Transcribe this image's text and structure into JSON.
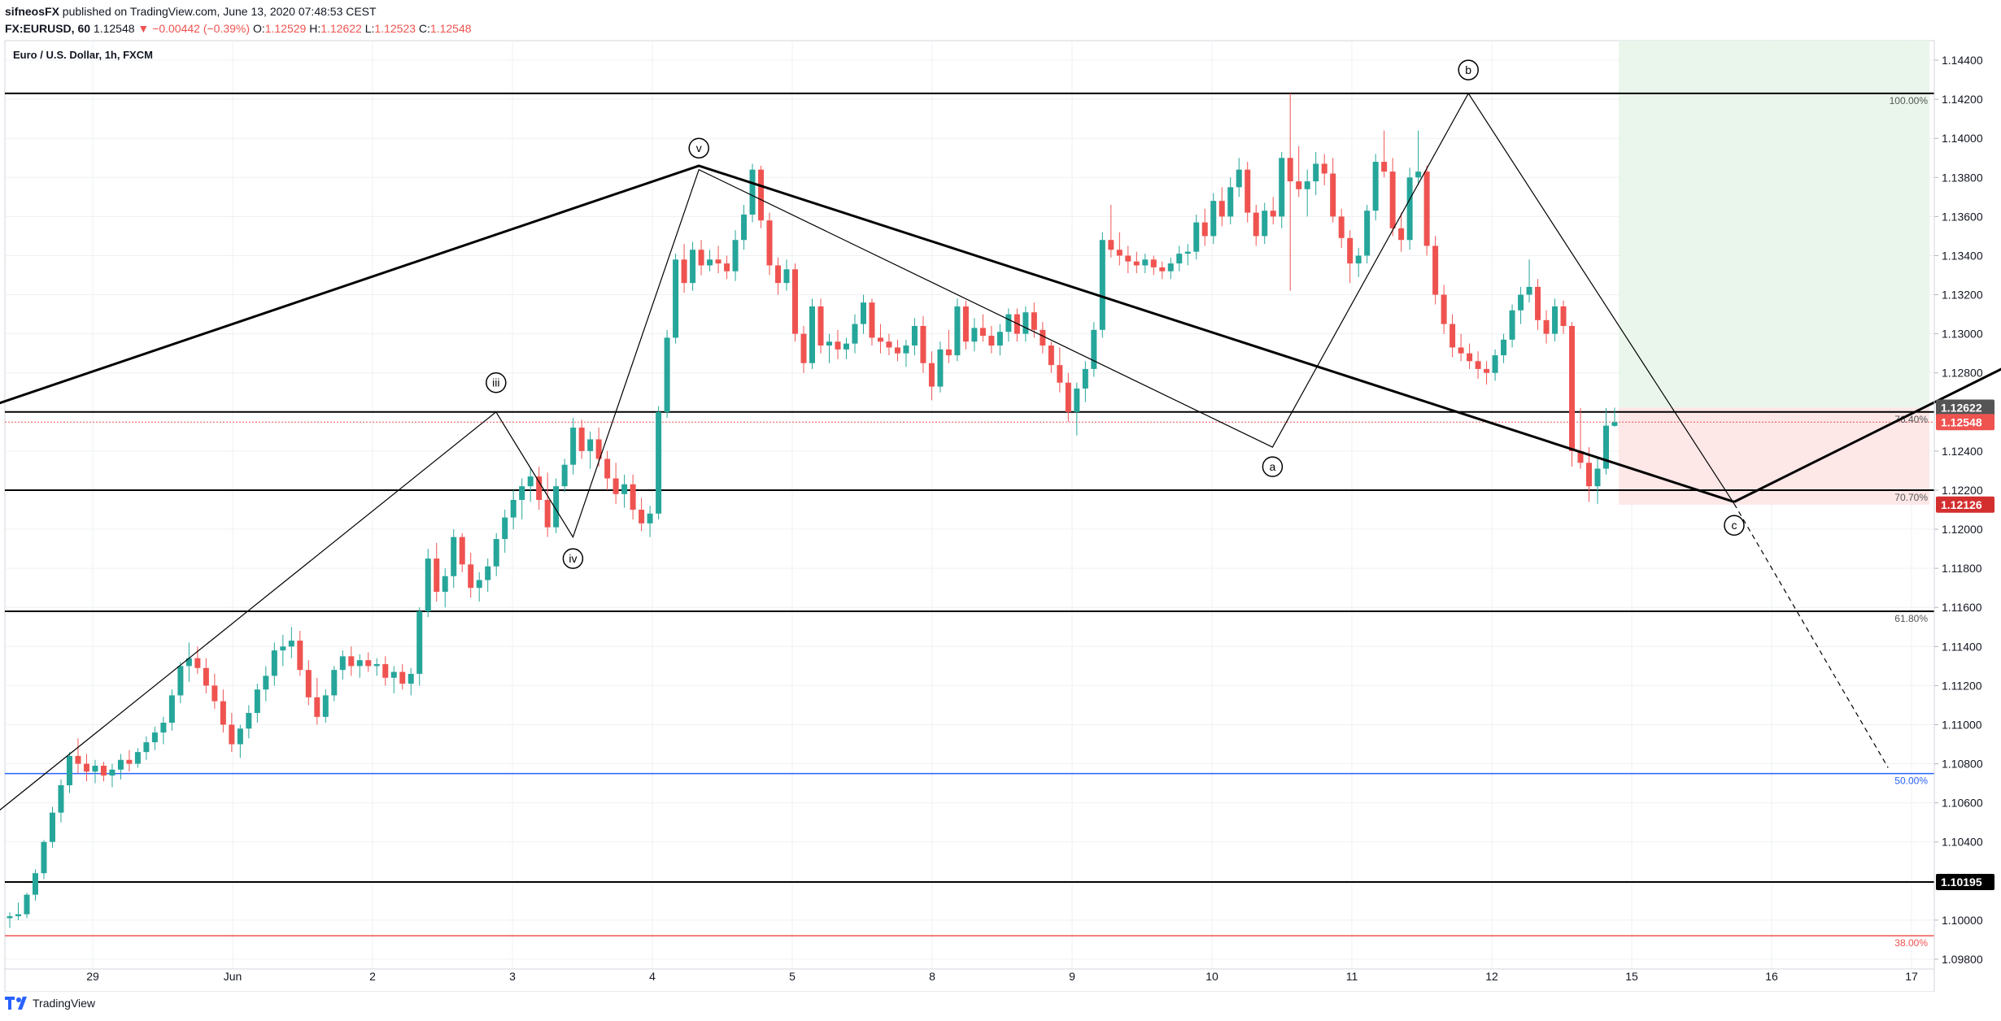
{
  "header": {
    "publisher": "sifneosFX",
    "published_text": "published on TradingView.com, June 13, 2020 07:48:53 CEST",
    "symbol": "FX:EURUSD, 60",
    "last": "1.12548",
    "change": "▼ −0.00442 (−0.39%)",
    "o_label": "O:",
    "o_val": "1.12529",
    "h_label": "H:",
    "h_val": "1.12622",
    "l_label": "L:",
    "l_val": "1.12523",
    "c_label": "C:",
    "c_val": "1.12548"
  },
  "chart_title": "Euro / U.S. Dollar, 1h, FXCM",
  "footer": {
    "brand": "TradingView"
  },
  "colors": {
    "up": "#26a69a",
    "down": "#ef5350",
    "grid": "#eef0f3",
    "fib50": "#2962ff",
    "fib38": "#ef5350",
    "target_zone": "#e8f5e9",
    "stop_zone": "#fde4e4"
  },
  "chart_data": {
    "type": "candlestick",
    "title": "Euro / U.S. Dollar, 1h, FXCM",
    "ylim": [
      1.0975,
      1.145
    ],
    "y_ticks": [
      "1.14400",
      "1.14200",
      "1.14000",
      "1.13800",
      "1.13600",
      "1.13400",
      "1.13200",
      "1.13000",
      "1.12800",
      "1.12400",
      "1.12200",
      "1.12000",
      "1.11800",
      "1.11600",
      "1.11400",
      "1.11200",
      "1.11000",
      "1.10800",
      "1.10600",
      "1.10400",
      "1.10000",
      "1.09800"
    ],
    "x_ticks": [
      "29",
      "Jun",
      "2",
      "3",
      "4",
      "5",
      "8",
      "9",
      "10",
      "11",
      "12",
      "15",
      "16",
      "17"
    ],
    "price_badges": [
      {
        "label": "1.12622",
        "value": 1.12622,
        "color": "#555555"
      },
      {
        "label": "1.12548",
        "value": 1.12548,
        "color": "#ef5350"
      },
      {
        "label": "1.12126",
        "value": 1.12126,
        "color": "#d32f2f"
      },
      {
        "label": "1.10195",
        "value": 1.10195,
        "color": "#000000"
      }
    ],
    "fib_levels": [
      {
        "label": "100.00%",
        "value": 1.1423,
        "color": "#000000"
      },
      {
        "label": "76.40%",
        "value": 1.126,
        "color": "#000000"
      },
      {
        "label": "70.70%",
        "value": 1.122,
        "color": "#000000"
      },
      {
        "label": "61.80%",
        "value": 1.1158,
        "color": "#000000"
      },
      {
        "label": "50.00%",
        "value": 1.1075,
        "color": "#2962ff"
      },
      {
        "label": "38.00%",
        "value": 1.0992,
        "color": "#ef5350"
      }
    ],
    "horizontal_line": {
      "value": 1.10195
    },
    "wave_labels": [
      {
        "text": "iii",
        "x": 3.9,
        "y": 1.1275
      },
      {
        "text": "iv",
        "x": 4.45,
        "y": 1.1185
      },
      {
        "text": "v",
        "x": 5.35,
        "y": 1.1395
      },
      {
        "text": "a",
        "x": 9.45,
        "y": 1.1232
      },
      {
        "text": "b",
        "x": 10.85,
        "y": 1.1435
      },
      {
        "text": "c",
        "x": 12.75,
        "y": 1.1202
      }
    ],
    "wave_path": [
      [
        0,
        1.1036
      ],
      [
        3.9,
        1.126
      ],
      [
        4.45,
        1.1196
      ],
      [
        5.35,
        1.1384
      ],
      [
        9.45,
        1.1242
      ],
      [
        10.85,
        1.1423
      ],
      [
        12.75,
        1.1213
      ]
    ],
    "triangle_upper": [
      [
        0,
        1.1256
      ],
      [
        5.35,
        1.1386
      ],
      [
        12.75,
        1.1214
      ]
    ],
    "triangle_lower": [
      [
        12.75,
        1.1214
      ],
      [
        14.8,
        1.1287
      ]
    ],
    "projection": [
      [
        12.75,
        1.1213
      ],
      [
        13.85,
        1.1078
      ]
    ],
    "candles": [
      [
        1.1001,
        1.1004,
        1.0996,
        1.1002
      ],
      [
        1.1002,
        1.1009,
        1.1,
        1.1003
      ],
      [
        1.1003,
        1.1014,
        1.1001,
        1.1013
      ],
      [
        1.1013,
        1.1026,
        1.101,
        1.1024
      ],
      [
        1.1024,
        1.1041,
        1.1021,
        1.104
      ],
      [
        1.104,
        1.1058,
        1.1037,
        1.1055
      ],
      [
        1.1055,
        1.1072,
        1.105,
        1.1069
      ],
      [
        1.1069,
        1.1086,
        1.1065,
        1.1084
      ],
      [
        1.1084,
        1.1093,
        1.1075,
        1.108
      ],
      [
        1.108,
        1.1085,
        1.1071,
        1.1076
      ],
      [
        1.1076,
        1.1082,
        1.107,
        1.1079
      ],
      [
        1.1079,
        1.1081,
        1.1071,
        1.1074
      ],
      [
        1.1074,
        1.108,
        1.1068,
        1.1077
      ],
      [
        1.1077,
        1.1085,
        1.1072,
        1.1082
      ],
      [
        1.1082,
        1.1087,
        1.1076,
        1.108
      ],
      [
        1.108,
        1.1088,
        1.1078,
        1.1086
      ],
      [
        1.1086,
        1.1094,
        1.1082,
        1.1091
      ],
      [
        1.1091,
        1.1099,
        1.1087,
        1.1096
      ],
      [
        1.1096,
        1.1104,
        1.109,
        1.1101
      ],
      [
        1.1101,
        1.1118,
        1.1097,
        1.1115
      ],
      [
        1.1115,
        1.1132,
        1.1111,
        1.113
      ],
      [
        1.113,
        1.1142,
        1.1122,
        1.1134
      ],
      [
        1.1134,
        1.114,
        1.1126,
        1.1129
      ],
      [
        1.1129,
        1.1134,
        1.1116,
        1.112
      ],
      [
        1.112,
        1.1126,
        1.1108,
        1.1112
      ],
      [
        1.1112,
        1.1118,
        1.1096,
        1.11
      ],
      [
        1.11,
        1.1106,
        1.1086,
        1.109
      ],
      [
        1.109,
        1.11,
        1.1083,
        1.1098
      ],
      [
        1.1098,
        1.111,
        1.1093,
        1.1106
      ],
      [
        1.1106,
        1.1121,
        1.1101,
        1.1118
      ],
      [
        1.1118,
        1.113,
        1.1112,
        1.1125
      ],
      [
        1.1125,
        1.1142,
        1.112,
        1.1138
      ],
      [
        1.1138,
        1.1146,
        1.113,
        1.114
      ],
      [
        1.114,
        1.115,
        1.1134,
        1.1143
      ],
      [
        1.1143,
        1.1148,
        1.1125,
        1.1128
      ],
      [
        1.1128,
        1.1133,
        1.111,
        1.1114
      ],
      [
        1.1114,
        1.1124,
        1.11,
        1.1104
      ],
      [
        1.1104,
        1.1118,
        1.1101,
        1.1115
      ],
      [
        1.1115,
        1.113,
        1.1112,
        1.1128
      ],
      [
        1.1128,
        1.1138,
        1.1123,
        1.1135
      ],
      [
        1.1135,
        1.114,
        1.1125,
        1.113
      ],
      [
        1.113,
        1.1136,
        1.1124,
        1.1133
      ],
      [
        1.1133,
        1.1137,
        1.1127,
        1.113
      ],
      [
        1.113,
        1.1134,
        1.1125,
        1.1131
      ],
      [
        1.1131,
        1.1135,
        1.112,
        1.1124
      ],
      [
        1.1124,
        1.113,
        1.1116,
        1.1127
      ],
      [
        1.1127,
        1.1131,
        1.1118,
        1.1121
      ],
      [
        1.1121,
        1.1129,
        1.1115,
        1.1126
      ],
      [
        1.1126,
        1.116,
        1.112,
        1.1158
      ],
      [
        1.1158,
        1.119,
        1.1155,
        1.1185
      ],
      [
        1.1185,
        1.1193,
        1.1163,
        1.1168
      ],
      [
        1.1168,
        1.118,
        1.116,
        1.1176
      ],
      [
        1.1176,
        1.12,
        1.117,
        1.1196
      ],
      [
        1.1196,
        1.1198,
        1.1178,
        1.1182
      ],
      [
        1.1182,
        1.1188,
        1.1165,
        1.117
      ],
      [
        1.117,
        1.1178,
        1.1163,
        1.1174
      ],
      [
        1.1174,
        1.1185,
        1.1168,
        1.1181
      ],
      [
        1.1181,
        1.1198,
        1.1176,
        1.1195
      ],
      [
        1.1195,
        1.121,
        1.1188,
        1.1206
      ],
      [
        1.1206,
        1.122,
        1.12,
        1.1215
      ],
      [
        1.1215,
        1.1226,
        1.1205,
        1.1222
      ],
      [
        1.1222,
        1.1231,
        1.1214,
        1.1227
      ],
      [
        1.1227,
        1.1232,
        1.121,
        1.1215
      ],
      [
        1.1215,
        1.1229,
        1.1196,
        1.1201
      ],
      [
        1.1201,
        1.1226,
        1.1198,
        1.1222
      ],
      [
        1.1222,
        1.1236,
        1.1219,
        1.1233
      ],
      [
        1.1233,
        1.1257,
        1.1228,
        1.1252
      ],
      [
        1.1252,
        1.1256,
        1.1236,
        1.124
      ],
      [
        1.124,
        1.125,
        1.1231,
        1.1246
      ],
      [
        1.1246,
        1.1252,
        1.1232,
        1.1236
      ],
      [
        1.1236,
        1.124,
        1.122,
        1.1226
      ],
      [
        1.1226,
        1.1234,
        1.1213,
        1.1218
      ],
      [
        1.1218,
        1.1228,
        1.1211,
        1.1223
      ],
      [
        1.1223,
        1.1228,
        1.1205,
        1.121
      ],
      [
        1.121,
        1.1216,
        1.1199,
        1.1203
      ],
      [
        1.1203,
        1.1212,
        1.1196,
        1.1208
      ],
      [
        1.1208,
        1.1263,
        1.1205,
        1.126
      ],
      [
        1.126,
        1.1302,
        1.1257,
        1.1298
      ],
      [
        1.1298,
        1.1341,
        1.1295,
        1.1338
      ],
      [
        1.1338,
        1.1346,
        1.1321,
        1.1326
      ],
      [
        1.1326,
        1.1347,
        1.1322,
        1.1343
      ],
      [
        1.1343,
        1.1348,
        1.133,
        1.1335
      ],
      [
        1.1335,
        1.1343,
        1.1332,
        1.1338
      ],
      [
        1.1338,
        1.1345,
        1.1331,
        1.1336
      ],
      [
        1.1336,
        1.134,
        1.1328,
        1.1332
      ],
      [
        1.1332,
        1.1353,
        1.1327,
        1.1348
      ],
      [
        1.1348,
        1.1366,
        1.1343,
        1.1361
      ],
      [
        1.1361,
        1.1387,
        1.1357,
        1.1384
      ],
      [
        1.1384,
        1.1386,
        1.1354,
        1.1358
      ],
      [
        1.1358,
        1.1362,
        1.133,
        1.1335
      ],
      [
        1.1335,
        1.1339,
        1.132,
        1.1326
      ],
      [
        1.1326,
        1.1338,
        1.1322,
        1.1333
      ],
      [
        1.1333,
        1.1336,
        1.1296,
        1.13
      ],
      [
        1.13,
        1.1304,
        1.128,
        1.1285
      ],
      [
        1.1285,
        1.1318,
        1.1282,
        1.1314
      ],
      [
        1.1314,
        1.1318,
        1.129,
        1.1294
      ],
      [
        1.1294,
        1.13,
        1.1285,
        1.1296
      ],
      [
        1.1296,
        1.1302,
        1.1287,
        1.1292
      ],
      [
        1.1292,
        1.1298,
        1.1287,
        1.1295
      ],
      [
        1.1295,
        1.131,
        1.129,
        1.1305
      ],
      [
        1.1305,
        1.132,
        1.13,
        1.1316
      ],
      [
        1.1316,
        1.1318,
        1.1294,
        1.1298
      ],
      [
        1.1298,
        1.1305,
        1.129,
        1.1296
      ],
      [
        1.1296,
        1.13,
        1.1289,
        1.1293
      ],
      [
        1.1293,
        1.1297,
        1.1286,
        1.129
      ],
      [
        1.129,
        1.1297,
        1.1283,
        1.1294
      ],
      [
        1.1294,
        1.1308,
        1.1289,
        1.1304
      ],
      [
        1.1304,
        1.1309,
        1.128,
        1.1285
      ],
      [
        1.1285,
        1.1291,
        1.1266,
        1.1273
      ],
      [
        1.1273,
        1.1296,
        1.127,
        1.1292
      ],
      [
        1.1292,
        1.1302,
        1.1285,
        1.1289
      ],
      [
        1.1289,
        1.1318,
        1.1286,
        1.1314
      ],
      [
        1.1314,
        1.1317,
        1.1292,
        1.1296
      ],
      [
        1.1296,
        1.1308,
        1.1291,
        1.1303
      ],
      [
        1.1303,
        1.131,
        1.1296,
        1.1299
      ],
      [
        1.1299,
        1.1304,
        1.129,
        1.1294
      ],
      [
        1.1294,
        1.1305,
        1.1289,
        1.1301
      ],
      [
        1.1301,
        1.1313,
        1.1296,
        1.131
      ],
      [
        1.131,
        1.1313,
        1.1296,
        1.13
      ],
      [
        1.13,
        1.1314,
        1.1296,
        1.1311
      ],
      [
        1.1311,
        1.1316,
        1.1298,
        1.1302
      ],
      [
        1.1302,
        1.1306,
        1.129,
        1.1294
      ],
      [
        1.1294,
        1.1296,
        1.128,
        1.1284
      ],
      [
        1.1284,
        1.1293,
        1.127,
        1.1275
      ],
      [
        1.1275,
        1.128,
        1.1255,
        1.126
      ],
      [
        1.126,
        1.1275,
        1.1248,
        1.1272
      ],
      [
        1.1272,
        1.1286,
        1.1265,
        1.1282
      ],
      [
        1.1282,
        1.1306,
        1.1278,
        1.1302
      ],
      [
        1.1302,
        1.1352,
        1.1298,
        1.1348
      ],
      [
        1.1348,
        1.1366,
        1.1339,
        1.1343
      ],
      [
        1.1343,
        1.1352,
        1.1335,
        1.134
      ],
      [
        1.134,
        1.1345,
        1.1331,
        1.1337
      ],
      [
        1.1337,
        1.1342,
        1.1331,
        1.1335
      ],
      [
        1.1335,
        1.1341,
        1.1331,
        1.1338
      ],
      [
        1.1338,
        1.134,
        1.133,
        1.1334
      ],
      [
        1.1334,
        1.1337,
        1.1328,
        1.1332
      ],
      [
        1.1332,
        1.1339,
        1.1328,
        1.1336
      ],
      [
        1.1336,
        1.1345,
        1.1332,
        1.1341
      ],
      [
        1.1341,
        1.1346,
        1.1335,
        1.1342
      ],
      [
        1.1342,
        1.1361,
        1.1338,
        1.1357
      ],
      [
        1.1357,
        1.1364,
        1.1345,
        1.135
      ],
      [
        1.135,
        1.1372,
        1.1346,
        1.1368
      ],
      [
        1.1368,
        1.1375,
        1.1355,
        1.136
      ],
      [
        1.136,
        1.138,
        1.1356,
        1.1375
      ],
      [
        1.1375,
        1.139,
        1.137,
        1.1384
      ],
      [
        1.1384,
        1.1388,
        1.1357,
        1.1362
      ],
      [
        1.1362,
        1.1366,
        1.1345,
        1.135
      ],
      [
        1.135,
        1.1367,
        1.1346,
        1.1363
      ],
      [
        1.1363,
        1.137,
        1.1356,
        1.136
      ],
      [
        1.136,
        1.1393,
        1.1354,
        1.139
      ],
      [
        1.139,
        1.1423,
        1.1322,
        1.1378
      ],
      [
        1.1378,
        1.1396,
        1.137,
        1.1374
      ],
      [
        1.1374,
        1.1384,
        1.136,
        1.1378
      ],
      [
        1.1378,
        1.1393,
        1.1371,
        1.1387
      ],
      [
        1.1387,
        1.1392,
        1.1376,
        1.1382
      ],
      [
        1.1382,
        1.139,
        1.1357,
        1.136
      ],
      [
        1.136,
        1.1364,
        1.1344,
        1.1349
      ],
      [
        1.1349,
        1.1353,
        1.1326,
        1.1336
      ],
      [
        1.1336,
        1.1344,
        1.1329,
        1.134
      ],
      [
        1.134,
        1.1366,
        1.1336,
        1.1363
      ],
      [
        1.1363,
        1.1392,
        1.1358,
        1.1388
      ],
      [
        1.1388,
        1.1404,
        1.138,
        1.1383
      ],
      [
        1.1383,
        1.139,
        1.135,
        1.1354
      ],
      [
        1.1354,
        1.1362,
        1.1342,
        1.1348
      ],
      [
        1.1348,
        1.1385,
        1.1343,
        1.138
      ],
      [
        1.138,
        1.1404,
        1.1376,
        1.1383
      ],
      [
        1.1383,
        1.1386,
        1.134,
        1.1345
      ],
      [
        1.1345,
        1.135,
        1.1315,
        1.132
      ],
      [
        1.132,
        1.1325,
        1.13,
        1.1305
      ],
      [
        1.1305,
        1.131,
        1.1288,
        1.1293
      ],
      [
        1.1293,
        1.13,
        1.1286,
        1.129
      ],
      [
        1.129,
        1.1295,
        1.1282,
        1.1286
      ],
      [
        1.1286,
        1.1291,
        1.1277,
        1.1282
      ],
      [
        1.1282,
        1.1286,
        1.1274,
        1.128
      ],
      [
        1.128,
        1.1292,
        1.1276,
        1.1289
      ],
      [
        1.1289,
        1.13,
        1.1285,
        1.1297
      ],
      [
        1.1297,
        1.1315,
        1.1293,
        1.1312
      ],
      [
        1.1312,
        1.1324,
        1.1305,
        1.132
      ],
      [
        1.132,
        1.1338,
        1.1316,
        1.1324
      ],
      [
        1.1324,
        1.1328,
        1.1302,
        1.1307
      ],
      [
        1.1307,
        1.1312,
        1.1295,
        1.13
      ],
      [
        1.13,
        1.1318,
        1.1296,
        1.1314
      ],
      [
        1.1314,
        1.1317,
        1.13,
        1.1304
      ],
      [
        1.1304,
        1.1306,
        1.1232,
        1.124
      ],
      [
        1.124,
        1.1262,
        1.1231,
        1.1234
      ],
      [
        1.1234,
        1.1242,
        1.1214,
        1.1222
      ],
      [
        1.1222,
        1.1236,
        1.1213,
        1.1231
      ],
      [
        1.1231,
        1.1262,
        1.1228,
        1.1253
      ],
      [
        1.12529,
        1.12622,
        1.12523,
        1.12548
      ]
    ]
  }
}
